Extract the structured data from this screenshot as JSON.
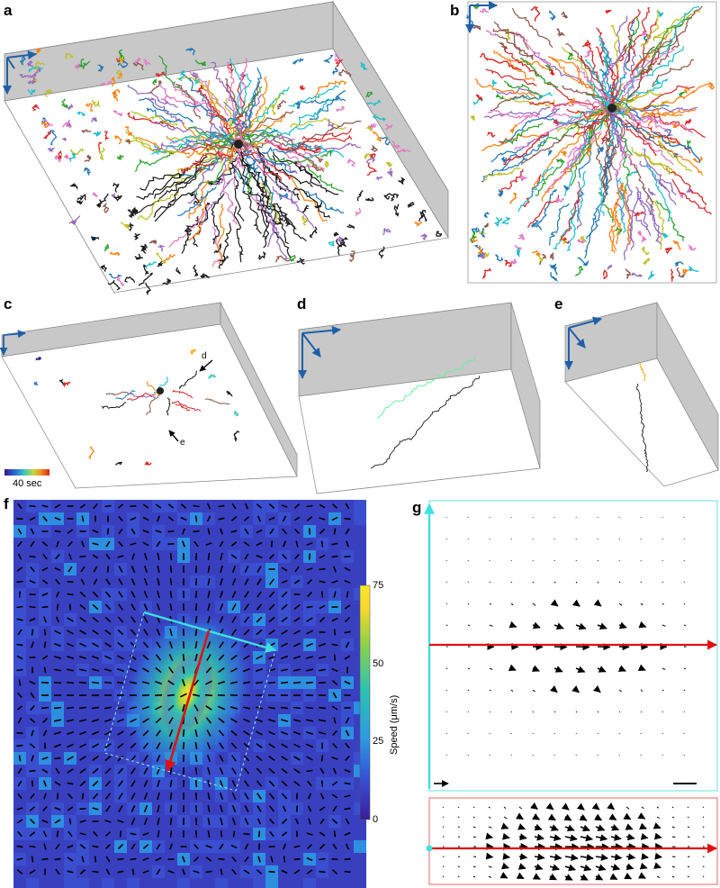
{
  "panels": {
    "a": "a",
    "b": "b",
    "c": "c",
    "d": "d",
    "e": "e",
    "f": "f",
    "g": "g"
  },
  "annotations": {
    "arrow_d": "d",
    "arrow_e": "e"
  },
  "time_colorbar": {
    "label": "40 sec",
    "colors": [
      "#2b1a8c",
      "#2f6fd6",
      "#3ec9c0",
      "#c8d83a",
      "#f08c20",
      "#d8231c"
    ]
  },
  "speed_colorbar": {
    "title": "Speed (μm/s)",
    "ticks": [
      "75",
      "50",
      "25",
      "0"
    ],
    "tick_values": [
      75,
      50,
      25,
      0
    ],
    "range": [
      0,
      75
    ],
    "colors": [
      "#3b1e9a",
      "#3552d8",
      "#2d9be0",
      "#2cc1b3",
      "#8fd14a",
      "#f5d82c",
      "#fbe72a"
    ]
  },
  "track_colors": [
    "#1f77b4",
    "#ff7f0e",
    "#2ca02c",
    "#d62728",
    "#9467bd",
    "#17becf",
    "#bcbd22",
    "#e377c2",
    "#8c564b",
    "#1a1a1a"
  ],
  "colors": {
    "axis_blue": "#1f5fa8",
    "wall_grey": "#c8c8c8",
    "cyan_line": "#3fe0e0",
    "red_line": "#e01010",
    "panel_g_top_border": "#7fe6e6",
    "panel_g_bottom_border": "#f08080"
  }
}
